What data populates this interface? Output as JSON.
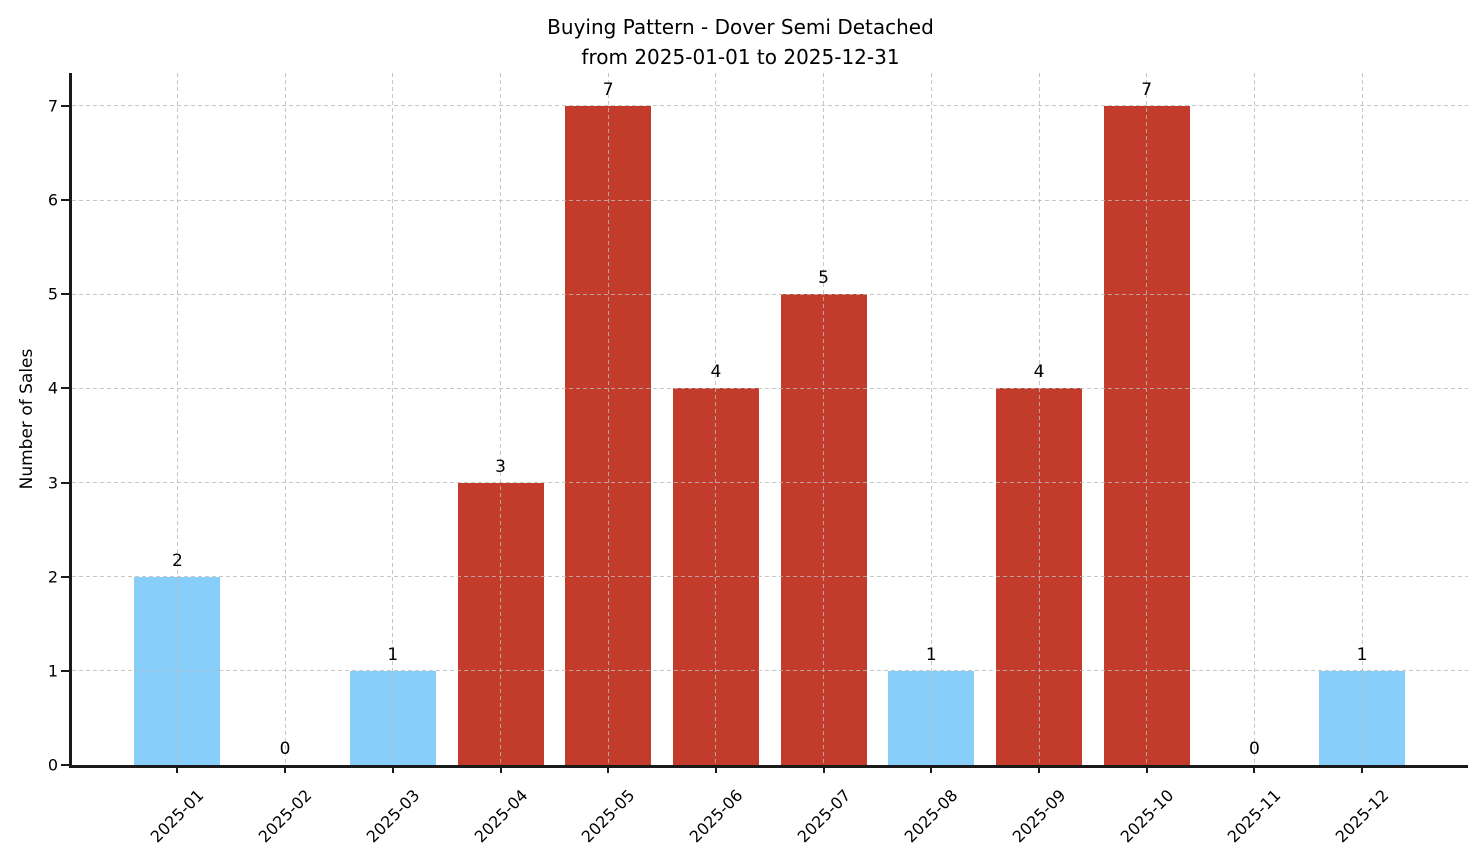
{
  "title": {
    "line1": "Buying Pattern - Dover Semi Detached",
    "line2": "from 2025-01-01 to 2025-12-31"
  },
  "chart_data": {
    "type": "bar",
    "title": "Buying Pattern - Dover Semi Detached\nfrom 2025-01-01 to 2025-12-31",
    "xlabel": "",
    "ylabel": "Number of Sales",
    "categories": [
      "2025-01",
      "2025-02",
      "2025-03",
      "2025-04",
      "2025-05",
      "2025-06",
      "2025-07",
      "2025-08",
      "2025-09",
      "2025-10",
      "2025-11",
      "2025-12"
    ],
    "values": [
      2,
      0,
      1,
      3,
      7,
      4,
      5,
      1,
      4,
      7,
      0,
      1
    ],
    "value_labels": [
      "2",
      "0",
      "1",
      "3",
      "7",
      "4",
      "5",
      "1",
      "4",
      "7",
      "0",
      "1"
    ],
    "bar_colors": [
      "#87CEFA",
      null,
      "#87CEFA",
      "#C33B2B",
      "#C33B2B",
      "#C33B2B",
      "#C33B2B",
      "#87CEFA",
      "#C33B2B",
      "#C33B2B",
      null,
      "#87CEFA"
    ],
    "ylim": [
      0,
      7.35
    ],
    "yticks": [
      0,
      1,
      2,
      3,
      4,
      5,
      6,
      7
    ],
    "grid": true,
    "grid_style": "dashed",
    "legend": "none",
    "x_tick_rotation": 45
  },
  "colors": {
    "blue_bar": "#87CEFA",
    "red_bar": "#C33B2B",
    "grid": "#b9b9b9",
    "axis": "#1a1a1a",
    "text": "#000000",
    "background": "#ffffff"
  }
}
